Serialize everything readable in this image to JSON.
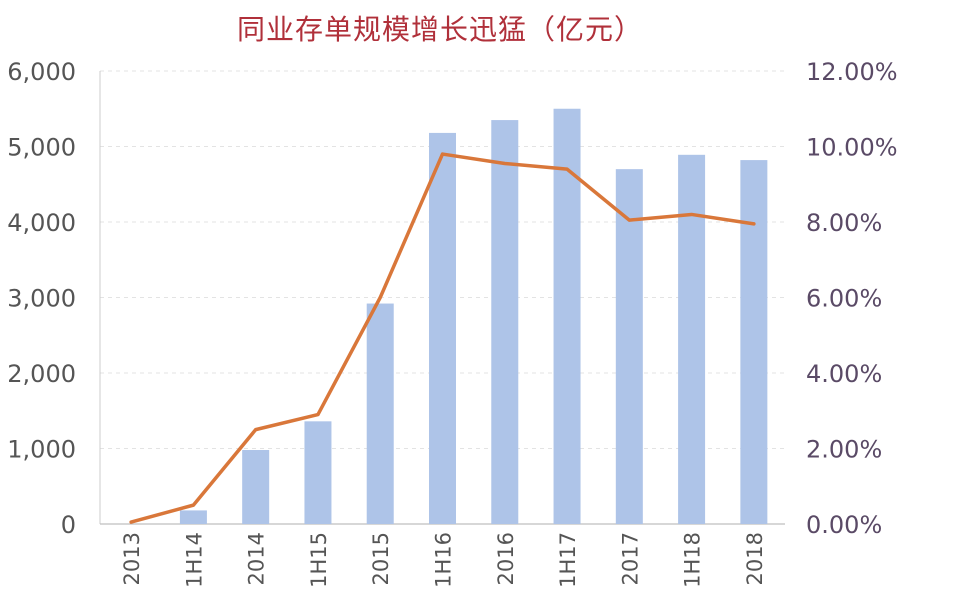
{
  "chart_data": {
    "type": "bar",
    "title": "同业存单规模增长迅猛（亿元）",
    "categories": [
      "2013",
      "1H14",
      "2014",
      "1H15",
      "2015",
      "1H16",
      "2016",
      "1H17",
      "2017",
      "1H18",
      "2018"
    ],
    "series": [
      {
        "type": "bar",
        "axis": "left",
        "color": "#aec4e8",
        "values": [
          0,
          180,
          980,
          1360,
          2920,
          5180,
          5350,
          5500,
          4700,
          4890,
          4820
        ]
      },
      {
        "type": "line",
        "axis": "right",
        "color": "#d9773a",
        "unit": "%",
        "values": [
          0.05,
          0.5,
          2.5,
          2.9,
          6.0,
          9.8,
          9.55,
          9.4,
          8.05,
          8.2,
          7.95
        ]
      }
    ],
    "y_left": {
      "range": [
        0,
        6000
      ],
      "ticks": [
        0,
        1000,
        2000,
        3000,
        4000,
        5000,
        6000
      ],
      "tick_labels": [
        "0",
        "1,000",
        "2,000",
        "3,000",
        "4,000",
        "5,000",
        "6,000"
      ]
    },
    "y_right": {
      "range": [
        0,
        12
      ],
      "ticks": [
        0,
        2,
        4,
        6,
        8,
        10,
        12
      ],
      "tick_labels": [
        "0.00%",
        "2.00%",
        "4.00%",
        "6.00%",
        "8.00%",
        "10.00%",
        "12.00%"
      ]
    },
    "grid": "horizontal-dashed",
    "legend": "none",
    "colors": {
      "title": "#b0303a",
      "axis_text": "#555555",
      "right_axis_text": "#5a4a66",
      "grid": "#e3e3e3"
    }
  }
}
